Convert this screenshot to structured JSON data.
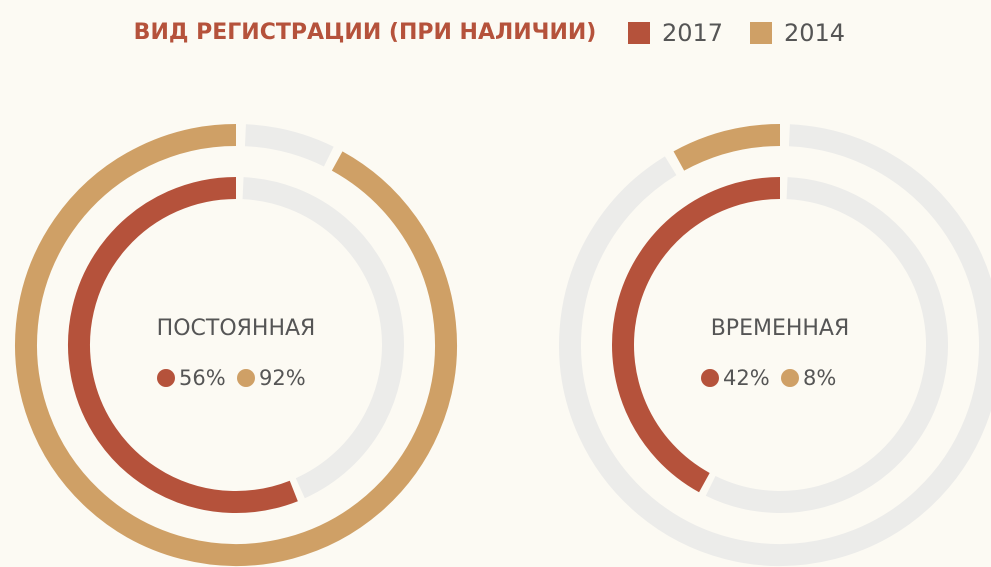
{
  "chart_data": {
    "type": "donut",
    "title": "ВИД РЕГИСТРАЦИИ (ПРИ НАЛИЧИИ)",
    "categories": [
      "ПОСТОЯННАЯ",
      "ВРЕМЕННАЯ"
    ],
    "series": [
      {
        "name": "2017",
        "color": "#b5523b",
        "values": [
          56,
          42
        ],
        "value_labels": [
          "56%",
          "42%"
        ]
      },
      {
        "name": "2014",
        "color": "#cfa066",
        "values": [
          92,
          8
        ],
        "value_labels": [
          "92%",
          "8%"
        ]
      }
    ]
  }
}
